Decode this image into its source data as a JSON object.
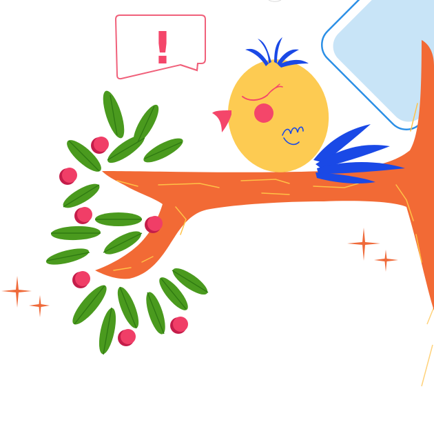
{
  "illustration": {
    "subject": "bird-on-branch",
    "speech_bubble": {
      "symbol": "!"
    },
    "colors": {
      "branch": "#f26a35",
      "branch_crack": "#ffc247",
      "bird_body": "#fdcb52",
      "bird_cheek": "#f4466a",
      "bird_crest": "#1a49e6",
      "bird_tail": "#1a49e6",
      "bird_beak": "#f4466a",
      "leaf": "#4a9a1e",
      "leaf_dark": "#2f7a12",
      "berry": "#f03e67",
      "berry_shade": "#c41d4a",
      "bubble_outline": "#f0607a",
      "sparkle": "#ef6a3a",
      "window_fill": "#c8e4f7",
      "window_outline": "#2b8fe6"
    }
  }
}
